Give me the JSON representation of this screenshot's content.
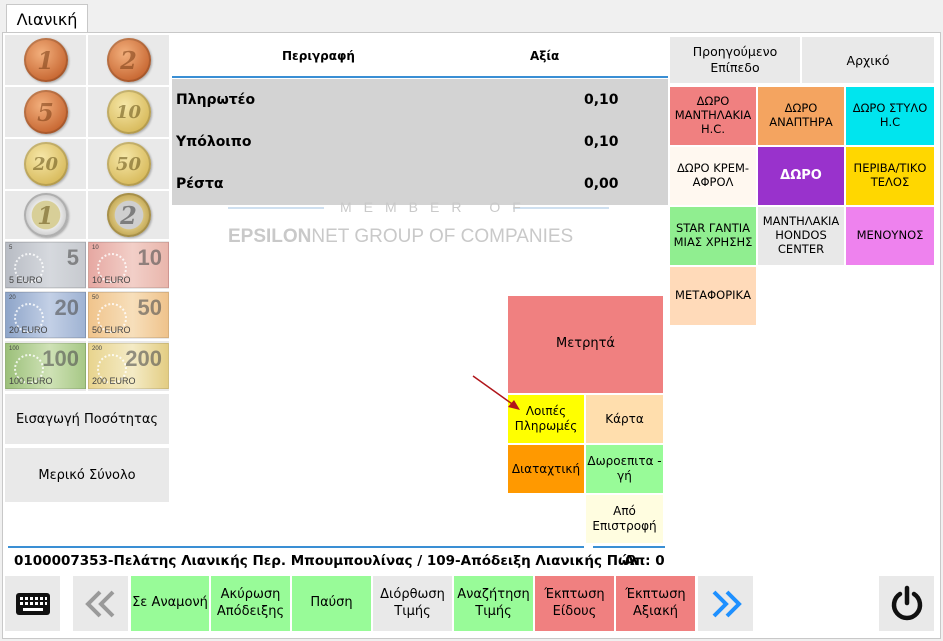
{
  "tab": {
    "label": "Λιανική"
  },
  "money": {
    "coins": [
      {
        "label": "1",
        "kind": "copper"
      },
      {
        "label": "2",
        "kind": "copper"
      },
      {
        "label": "5",
        "kind": "copper"
      },
      {
        "label": "10",
        "kind": "gold"
      },
      {
        "label": "20",
        "kind": "gold"
      },
      {
        "label": "50",
        "kind": "gold"
      },
      {
        "label": "1",
        "kind": "bimetal-gold-ring"
      },
      {
        "label": "2",
        "kind": "bimetal-silver-ring"
      }
    ],
    "notes": [
      {
        "value": "5",
        "caption": "5 EURO"
      },
      {
        "value": "10",
        "caption": "10 EURO"
      },
      {
        "value": "20",
        "caption": "20 EURO"
      },
      {
        "value": "50",
        "caption": "50 EURO"
      },
      {
        "value": "100",
        "caption": "100 EURO"
      },
      {
        "value": "200",
        "caption": "200 EURO"
      }
    ]
  },
  "left_buttons": {
    "quantity": "Εισαγωγή Ποσότητας",
    "subtotal": "Μερικό Σύνολο"
  },
  "table": {
    "headers": {
      "description": "Περιγραφή",
      "value": "Αξία"
    },
    "rows": [
      {
        "label": "Πληρωτέο",
        "value": "0,10"
      },
      {
        "label": "Υπόλοιπο",
        "value": "0,10"
      },
      {
        "label": "Ρέστα",
        "value": "0,00"
      }
    ]
  },
  "watermark": {
    "line1": "MEMBER OF",
    "line2_bold": "EPSILON",
    "line2_rest": "NET GROUP OF COMPANIES"
  },
  "payments": {
    "cash": "Μετρητά",
    "other": "Λοιπές Πληρωμές",
    "card": "Κάρτα",
    "order": "Διαταχτική",
    "gift_card": "Δωροεπιτα - γή",
    "from_return": "Από Επιστροφή"
  },
  "categories": {
    "prev_level": "Προηγούμενο Επίπεδο",
    "home": "Αρχικό",
    "items": [
      {
        "label": "ΔΩΡΟ ΜΑΝΤΗΛΑΚΙΑ Η.C.",
        "color": "#f08080"
      },
      {
        "label": "ΔΩΡΟ ΑΝΑΠΤΗΡΑ",
        "color": "#f4a460"
      },
      {
        "label": "ΔΩΡΟ ΣΤΥΛΟ Η.C",
        "color": "#00e5ee"
      },
      {
        "label": "ΔΩΡΟ ΚΡΕΜ-ΑΦΡΟΛ",
        "color": "#fff8f0"
      },
      {
        "label": "ΔΩΡΟ",
        "color": "#9932cc"
      },
      {
        "label": "ΠΕΡΙΒΑ/ΤΙΚΟ ΤΕΛΟΣ",
        "color": "#ffd700"
      },
      {
        "label": "STAR ΓΑΝΤΙΑ ΜΙΑΣ ΧΡΗΣΗΣ",
        "color": "#90ee90"
      },
      {
        "label": "ΜΑΝΤΗΛΑΚΙΑ HONDOS CENTER",
        "color": "#e8e8e8"
      },
      {
        "label": "ΜΕΝΟΥΝΟΣ",
        "color": "#ee82ee"
      },
      {
        "label": "ΜΕΤΑΦΟΡΙΚΑ",
        "color": "#ffdab9"
      }
    ]
  },
  "status": {
    "customer": "0100007353-Πελάτης Λιανικής Περ. Μπουμπουλίνας / 109-Απόδειξη Λιανικής Πώλ",
    "count": "Απ: 0"
  },
  "bottom_bar": {
    "hold": "Σε Αναμονή",
    "cancel_receipt": "Ακύρωση Απόδειξης",
    "pause": "Παύση",
    "price_fix": "Διόρθωση Τιμής",
    "price_search": "Αναζήτηση Τιμής",
    "item_discount": "Έκπτωση Είδους",
    "value_discount": "Έκπτωση Αξιακή"
  },
  "colors": {
    "accent_blue": "#3a8fd4",
    "cash_red": "#f08080",
    "other_yellow": "#ffff00",
    "card_peach": "#ffdead",
    "order_orange": "#ff9900",
    "gift_green": "#98fb98",
    "return_cream": "#fffde0",
    "bottom_green": "#98fb98",
    "bottom_red": "#f08080"
  }
}
